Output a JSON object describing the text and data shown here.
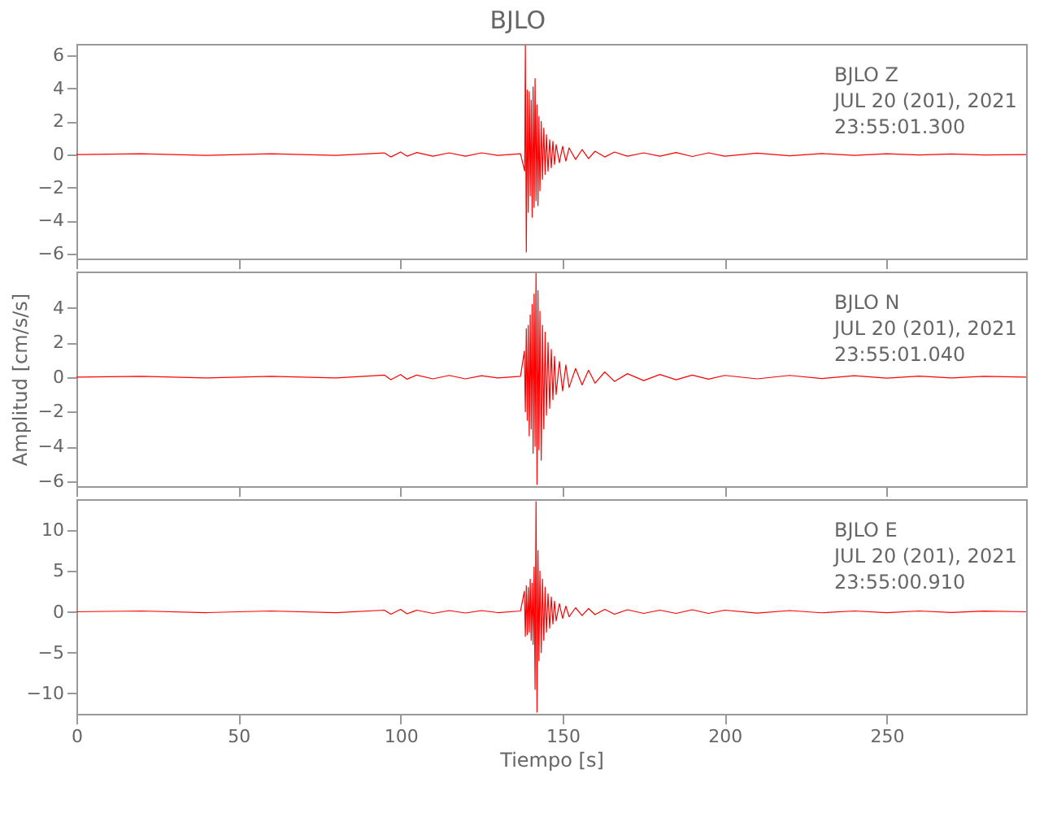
{
  "chart_data": [
    {
      "type": "line",
      "title": "BJLO",
      "annotations": [
        "BJLO   Z",
        "JUL 20 (201), 2021",
        "23:55:01.300"
      ],
      "xlim": [
        0,
        293
      ],
      "xticks": [
        0,
        50,
        100,
        150,
        200,
        250
      ],
      "ylim": [
        -6.3,
        6.7
      ],
      "yticks": [
        -6,
        -4,
        -2,
        0,
        2,
        4,
        6
      ],
      "tick_labels": "y",
      "grid": false,
      "marker": "none",
      "series": [
        {
          "color": "#ff0000",
          "x": [
            0,
            20,
            40,
            60,
            80,
            95,
            97,
            100,
            102,
            105,
            110,
            115,
            120,
            125,
            130,
            137,
            138.3,
            138.5,
            138.8,
            139.1,
            139.4,
            139.7,
            140,
            140.3,
            140.6,
            140.9,
            141.2,
            141.5,
            141.8,
            142.1,
            142.4,
            142.7,
            143,
            143.4,
            143.8,
            144.2,
            144.6,
            145,
            145.5,
            146,
            146.5,
            147,
            147.5,
            148,
            149,
            150,
            151,
            152,
            154,
            156,
            158,
            160,
            163,
            166,
            170,
            175,
            180,
            185,
            190,
            195,
            200,
            210,
            220,
            230,
            240,
            250,
            260,
            270,
            280,
            293
          ],
          "values": [
            0,
            0.05,
            -0.05,
            0.05,
            -0.05,
            0.1,
            -0.15,
            0.15,
            -0.1,
            0.12,
            -0.1,
            0.1,
            -0.1,
            0.1,
            -0.05,
            0.05,
            -1,
            6.6,
            -5.9,
            3.9,
            -3.5,
            3.8,
            -2.5,
            3.3,
            -3.8,
            4.1,
            -3.2,
            4.6,
            -2.8,
            3.0,
            -3.1,
            2.3,
            -2.2,
            2.0,
            -1.5,
            1.6,
            -1.2,
            1.2,
            -1.0,
            0.9,
            -0.8,
            0.8,
            -0.6,
            0.6,
            -0.5,
            0.5,
            -0.4,
            0.4,
            -0.3,
            0.3,
            -0.25,
            0.2,
            -0.15,
            0.15,
            -0.1,
            0.1,
            -0.1,
            0.12,
            -0.12,
            0.1,
            -0.1,
            0.08,
            -0.08,
            0.06,
            -0.05,
            0.05,
            -0.03,
            0.03,
            -0.03,
            0
          ]
        }
      ]
    },
    {
      "type": "line",
      "ylabel": "Amplitud [cm/s/s]",
      "annotations": [
        "BJLO   N",
        "JUL 20 (201), 2021",
        "23:55:01.040"
      ],
      "xlim": [
        0,
        293
      ],
      "xticks": [
        0,
        50,
        100,
        150,
        200,
        250
      ],
      "ylim": [
        -6.3,
        6.1
      ],
      "yticks": [
        -6,
        -4,
        -2,
        0,
        2,
        4
      ],
      "tick_labels": "y",
      "grid": false,
      "marker": "none",
      "series": [
        {
          "color": "#ff0000",
          "x": [
            0,
            20,
            40,
            60,
            80,
            95,
            97,
            100,
            102,
            105,
            110,
            115,
            120,
            125,
            130,
            137,
            138.2,
            138.5,
            138.8,
            139.1,
            139.4,
            139.7,
            140,
            140.3,
            140.6,
            140.9,
            141.2,
            141.5,
            141.8,
            142.1,
            142.4,
            142.7,
            143,
            143.4,
            143.8,
            144.2,
            144.6,
            145,
            145.5,
            146,
            146.5,
            147,
            147.5,
            148,
            149,
            150,
            151,
            152,
            154,
            156,
            158,
            160,
            163,
            166,
            170,
            175,
            180,
            185,
            190,
            195,
            200,
            210,
            220,
            230,
            240,
            250,
            260,
            270,
            280,
            293
          ],
          "values": [
            0,
            0.05,
            -0.05,
            0.05,
            -0.05,
            0.12,
            -0.15,
            0.15,
            -0.12,
            0.12,
            -0.1,
            0.1,
            -0.1,
            0.08,
            -0.05,
            0.05,
            1.5,
            -2.0,
            2.8,
            -2.5,
            3.0,
            -3.4,
            3.6,
            -3.0,
            4.2,
            -4.4,
            4.8,
            -4.0,
            6.0,
            -6.2,
            5.0,
            -4.2,
            3.8,
            -4.8,
            3.0,
            -3.0,
            2.6,
            -2.2,
            2.0,
            -1.8,
            1.6,
            -1.3,
            1.2,
            -1.0,
            0.9,
            -0.8,
            0.7,
            -0.6,
            0.5,
            -0.45,
            0.4,
            -0.35,
            0.3,
            -0.25,
            0.2,
            -0.2,
            0.15,
            -0.15,
            0.12,
            -0.12,
            0.1,
            -0.1,
            0.1,
            -0.08,
            0.08,
            -0.06,
            0.06,
            -0.05,
            0.05,
            0
          ]
        }
      ]
    },
    {
      "type": "line",
      "xlabel": "Tiempo [s]",
      "annotations": [
        "BJLO   E",
        "JUL 20 (201), 2021",
        "23:55:00.910"
      ],
      "xlim": [
        0,
        293
      ],
      "xticks": [
        0,
        50,
        100,
        150,
        200,
        250
      ],
      "ylim": [
        -12.5,
        13.8
      ],
      "yticks": [
        -10,
        -5,
        0,
        5,
        10
      ],
      "grid": false,
      "marker": "none",
      "series": [
        {
          "color": "#ff0000",
          "x": [
            0,
            20,
            40,
            60,
            80,
            95,
            97,
            100,
            102,
            105,
            110,
            115,
            120,
            125,
            130,
            137,
            138.2,
            138.5,
            138.8,
            139.1,
            139.4,
            139.7,
            140,
            140.3,
            140.6,
            140.9,
            141.2,
            141.5,
            141.8,
            142.1,
            142.4,
            142.7,
            143,
            143.4,
            143.8,
            144.2,
            144.6,
            145,
            145.5,
            146,
            146.5,
            147,
            147.5,
            148,
            149,
            150,
            151,
            152,
            154,
            156,
            158,
            160,
            163,
            166,
            170,
            175,
            180,
            185,
            190,
            195,
            200,
            210,
            220,
            230,
            240,
            250,
            260,
            270,
            280,
            293
          ],
          "values": [
            0,
            0.1,
            -0.1,
            0.1,
            -0.1,
            0.2,
            -0.3,
            0.3,
            -0.25,
            0.2,
            -0.2,
            0.15,
            -0.15,
            0.15,
            -0.1,
            0.1,
            2.5,
            -3.0,
            3.2,
            -2.8,
            3.0,
            -2.5,
            4.0,
            -3.5,
            3.5,
            -4.0,
            5.5,
            -9.5,
            13.5,
            -12.3,
            7.5,
            -6.0,
            5.0,
            -5.0,
            4.0,
            -3.5,
            3.0,
            -2.5,
            2.2,
            -2.0,
            1.8,
            -1.5,
            1.3,
            -1.1,
            1.0,
            -0.8,
            0.7,
            -0.6,
            0.5,
            -0.45,
            0.4,
            -0.35,
            0.3,
            -0.3,
            0.25,
            -0.2,
            0.2,
            -0.2,
            0.25,
            -0.2,
            0.2,
            -0.15,
            0.15,
            -0.12,
            0.1,
            -0.1,
            0.1,
            -0.08,
            0.08,
            0
          ]
        }
      ]
    }
  ]
}
